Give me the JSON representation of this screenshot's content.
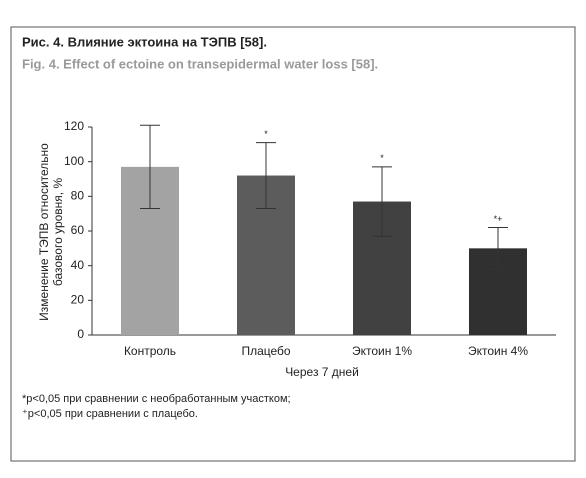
{
  "chart_data": {
    "type": "bar",
    "title": "Рис. 4. Влияние эктоина на ТЭПВ [58].",
    "subtitle": "Fig. 4. Effect of ectoine on transepidermal water loss [58].",
    "ylabel": [
      "Изменение ТЭПВ относительно",
      "базового уровня, %"
    ],
    "xlabel": "Через 7 дней",
    "categories": [
      "Контроль",
      "Плацебо",
      "Эктоин 1%",
      "Эктоин 4%"
    ],
    "values": [
      97,
      92,
      77,
      50
    ],
    "errors": [
      24,
      19,
      20,
      12
    ],
    "colors": [
      "#a3a3a3",
      "#5c5c5c",
      "#414141",
      "#303030"
    ],
    "annotations": [
      null,
      "*",
      "*",
      "*+"
    ],
    "ylim": [
      0,
      120
    ],
    "yticks": [
      0,
      20,
      40,
      60,
      80,
      100,
      120
    ],
    "grid": false,
    "footnotes": [
      "*p<0,05 при сравнении с необработанным участком;",
      "⁺p<0,05 при сравнении с плацебо."
    ]
  }
}
